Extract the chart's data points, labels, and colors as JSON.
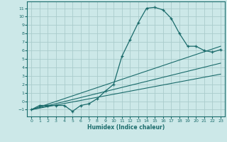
{
  "xlabel": "Humidex (Indice chaleur)",
  "bg_color": "#cce8e8",
  "grid_color": "#aacccc",
  "line_color": "#1a6b6b",
  "xlim": [
    -0.5,
    23.5
  ],
  "ylim": [
    -1.8,
    11.8
  ],
  "xticks": [
    0,
    1,
    2,
    3,
    4,
    5,
    6,
    7,
    8,
    9,
    10,
    11,
    12,
    13,
    14,
    15,
    16,
    17,
    18,
    19,
    20,
    21,
    22,
    23
  ],
  "yticks": [
    -1,
    0,
    1,
    2,
    3,
    4,
    5,
    6,
    7,
    8,
    9,
    10,
    11
  ],
  "curve_x": [
    0,
    1,
    2,
    3,
    4,
    5,
    6,
    7,
    8,
    9,
    10,
    11,
    12,
    13,
    14,
    15,
    16,
    17,
    18,
    19,
    20,
    21,
    22,
    23
  ],
  "curve_y": [
    -1.0,
    -0.5,
    -0.5,
    -0.5,
    -0.5,
    -1.2,
    -0.5,
    -0.3,
    0.3,
    1.2,
    2.0,
    5.3,
    7.3,
    9.3,
    11.0,
    11.1,
    10.8,
    9.8,
    8.0,
    6.5,
    6.5,
    6.0,
    5.8,
    6.1
  ],
  "line1_x": [
    0,
    23
  ],
  "line1_y": [
    -1.0,
    6.5
  ],
  "line2_x": [
    0,
    23
  ],
  "line2_y": [
    -1.0,
    4.5
  ],
  "line3_x": [
    0,
    23
  ],
  "line3_y": [
    -1.0,
    3.2
  ]
}
